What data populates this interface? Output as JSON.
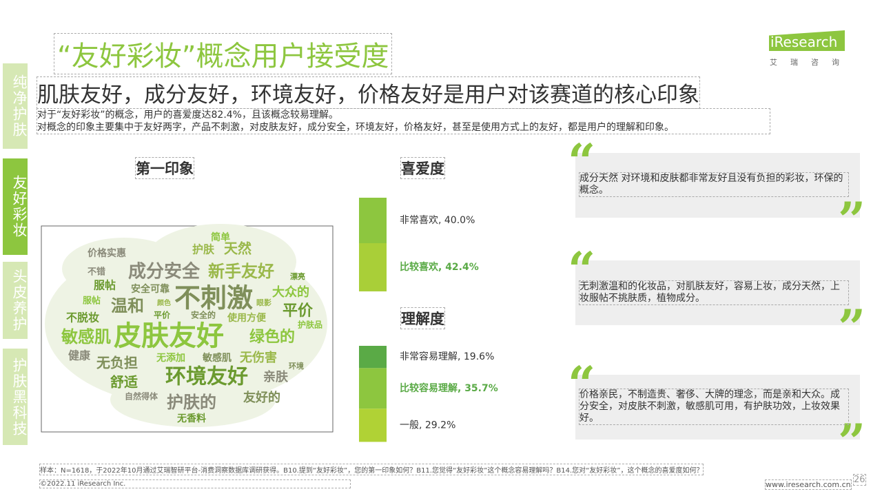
{
  "sidebar": {
    "tabs": [
      "纯净护肤",
      "友好彩妆",
      "头皮养护",
      "护肤黑科技"
    ],
    "active": 1
  },
  "header": {
    "title": "“友好彩妆”概念用户接受度",
    "brand": "iResearch",
    "brand_cn": "艾瑞咨询"
  },
  "headline": "肌肤友好，成分友好，环境友好，价格友好是用户对该赛道的核心印象",
  "summary": [
    "对于“友好彩妆”的概念，用户的喜爱度达82.4%，且该概念较易理解。",
    "对概念的印象主要集中于友好两字，产品不刺激，对皮肤友好，成分安全，环境友好，价格友好，甚至是使用方式上的友好，都是用户的理解和印象。"
  ],
  "first_impression": {
    "title": "第一印象",
    "words": [
      "皮肤友好",
      "不刺激",
      "环境友好",
      "成分安全",
      "新手友好",
      "敏感肌",
      "温和",
      "平价",
      "护肤的",
      "天然",
      "绿色的",
      "无负担",
      "舒适",
      "亲肤",
      "无伤害",
      "大众的",
      "友好的",
      "不脱妆",
      "价格实惠",
      "护肤",
      "简单",
      "安全可靠",
      "服帖",
      "健康",
      "使用方便",
      "无添加",
      "敏感肌",
      "无香料",
      "自然得体",
      "眼影",
      "护肤品",
      "安全的",
      "平价",
      "不错",
      "颜色",
      "服帖",
      "环境",
      "漂亮"
    ]
  },
  "liking": {
    "title": "喜爱度",
    "items": [
      {
        "label": "非常喜欢, 40.0%",
        "value": 40.0,
        "color": "#8dc63f",
        "bold": false
      },
      {
        "label": "比较喜欢, 42.4%",
        "value": 42.4,
        "color": "#a9cf38",
        "bold": true
      }
    ]
  },
  "understanding": {
    "title": "理解度",
    "items": [
      {
        "label": "非常容易理解, 19.6%",
        "value": 19.6,
        "color": "#5aaa46",
        "bold": false
      },
      {
        "label": "比较容易理解, 35.7%",
        "value": 35.7,
        "color": "#8dc63f",
        "bold": true
      },
      {
        "label": "一般, 29.2%",
        "value": 29.2,
        "color": "#b0d235",
        "bold": false
      }
    ]
  },
  "quotes": [
    "成分天然 对环境和皮肤都非常友好且没有负担的彩妆，环保的概念。",
    "无刺激温和的化妆品，对肌肤友好，容易上妆，成分天然，上妆服帖不挑肤质，植物成分。",
    "价格亲民，不制造贵、奢侈、大牌的理念，而是亲和大众。成分安全，对皮肤不刺激，敏感肌可用，有护肤功效，上妆效果好。"
  ],
  "footer": {
    "note": "样本：N=1618，于2022年10月通过艾瑞智研平台-消费洞察数据库调研获得。B10.提到“友好彩妆”，您的第一印象如何？B11.您觉得“友好彩妆”这个概念容易理解吗？B14.您对“友好彩妆”，这个概念的喜爱度如何？",
    "copyright": "©2022.11 iResearch Inc.",
    "url": "www.iresearch.com.cn",
    "page": "26"
  }
}
